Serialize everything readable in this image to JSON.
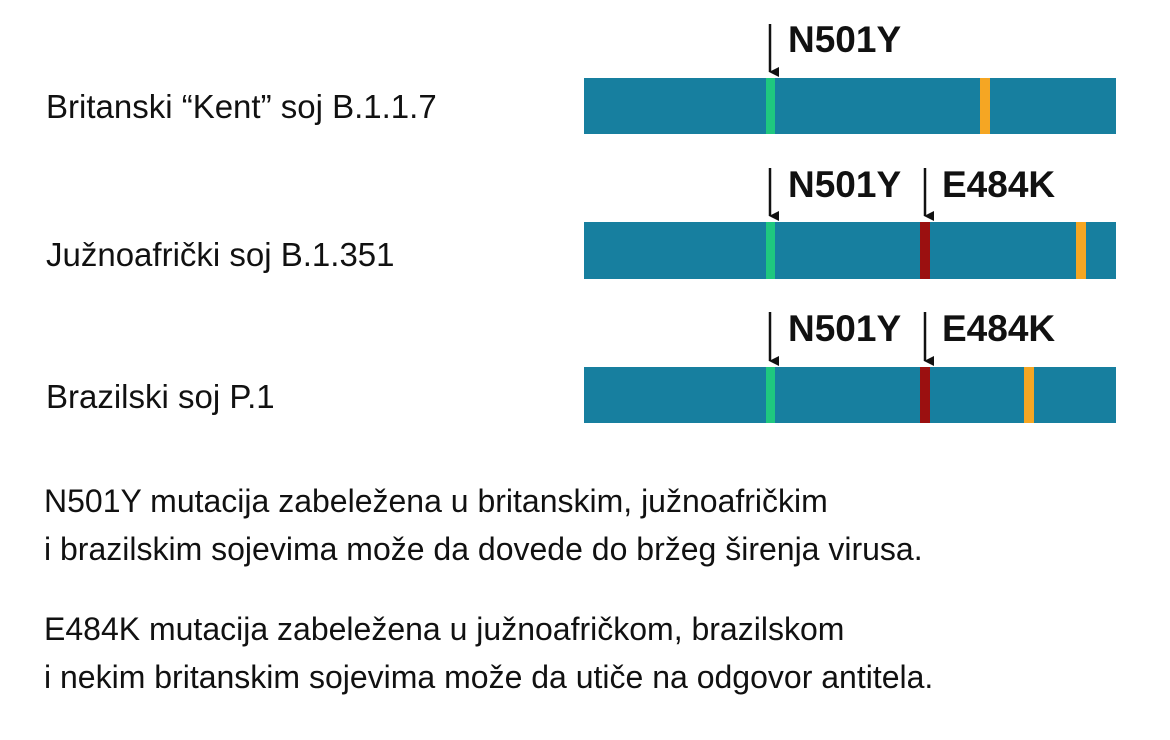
{
  "variants": [
    {
      "label": "Britanski “Kent” soj B.1.1.7",
      "mutations": [
        "N501Y"
      ]
    },
    {
      "label": "Južnoafrički soj B.1.351",
      "mutations": [
        "N501Y",
        "E484K"
      ]
    },
    {
      "label": "Brazilski soj P.1",
      "mutations": [
        "N501Y",
        "E484K"
      ]
    }
  ],
  "notes": [
    [
      "N501Y mutacija zabeležena u britanskim, južnoafričkim",
      "i brazilskim sojevima može da dovede do bržeg širenja virusa."
    ],
    [
      "E484K mutacija zabeležena u južnoafričkom, brazilskom",
      "i nekim britanskim sojevima može da utiče na odgovor antitela."
    ]
  ]
}
